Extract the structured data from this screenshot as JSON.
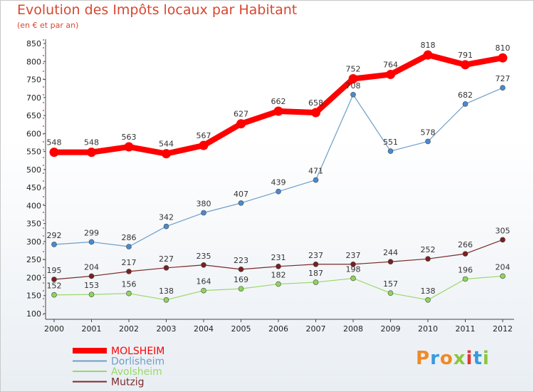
{
  "header": {
    "title": "Evolution des Impôts locaux par Habitant",
    "subtitle": "(en € et par an)"
  },
  "logo": {
    "text": "Proxiti",
    "colors": [
      "#f08a24",
      "#3a9ad9",
      "#f08a24",
      "#8cc63f",
      "#e03a3a",
      "#3a9ad9",
      "#8cc63f"
    ]
  },
  "chart_data": {
    "type": "line",
    "title": "Evolution des Impôts locaux par Habitant",
    "subtitle": "(en € et par an)",
    "x": [
      "2000",
      "2001",
      "2002",
      "2003",
      "2004",
      "2005",
      "2006",
      "2007",
      "2008",
      "2009",
      "2010",
      "2011",
      "2012"
    ],
    "ylim": [
      100,
      850
    ],
    "yticks": [
      100,
      150,
      200,
      250,
      300,
      350,
      400,
      450,
      500,
      550,
      600,
      650,
      700,
      750,
      800,
      850
    ],
    "grid": false,
    "legend": "bottom-left",
    "series": [
      {
        "name": "MOLSHEIM",
        "color": "#ff0000",
        "values": [
          548,
          548,
          563,
          544,
          567,
          627,
          662,
          658,
          752,
          764,
          818,
          791,
          810
        ],
        "labels": [
          "548",
          "548",
          "563",
          "544",
          "567",
          "627",
          "662",
          "658",
          "752",
          "764",
          "818",
          "791",
          "810"
        ]
      },
      {
        "name": "Dorlisheim",
        "color": "#6e9ec8",
        "values": [
          292,
          299,
          286,
          342,
          380,
          407,
          439,
          471,
          708,
          551,
          578,
          682,
          727
        ],
        "labels": [
          "292",
          "299",
          "286",
          "342",
          "380",
          "407",
          "439",
          "471",
          "708",
          "551",
          "578",
          "682",
          "727"
        ]
      },
      {
        "name": "Avolsheim",
        "color": "#9ad86a",
        "values": [
          152,
          153,
          156,
          138,
          164,
          169,
          182,
          187,
          198,
          157,
          138,
          196,
          204
        ],
        "labels": [
          "152",
          "153",
          "156",
          "138",
          "164",
          "169",
          "182",
          "187",
          "198",
          "157",
          "138",
          "196",
          "204"
        ]
      },
      {
        "name": "Mutzig",
        "color": "#7a2a2a",
        "values": [
          195,
          204,
          217,
          227,
          235,
          223,
          231,
          237,
          237,
          244,
          252,
          266,
          305
        ],
        "labels": [
          "195",
          "204",
          "217",
          "227",
          "235",
          "223",
          "231",
          "237",
          "237",
          "244",
          "252",
          "266",
          "305"
        ]
      }
    ]
  }
}
